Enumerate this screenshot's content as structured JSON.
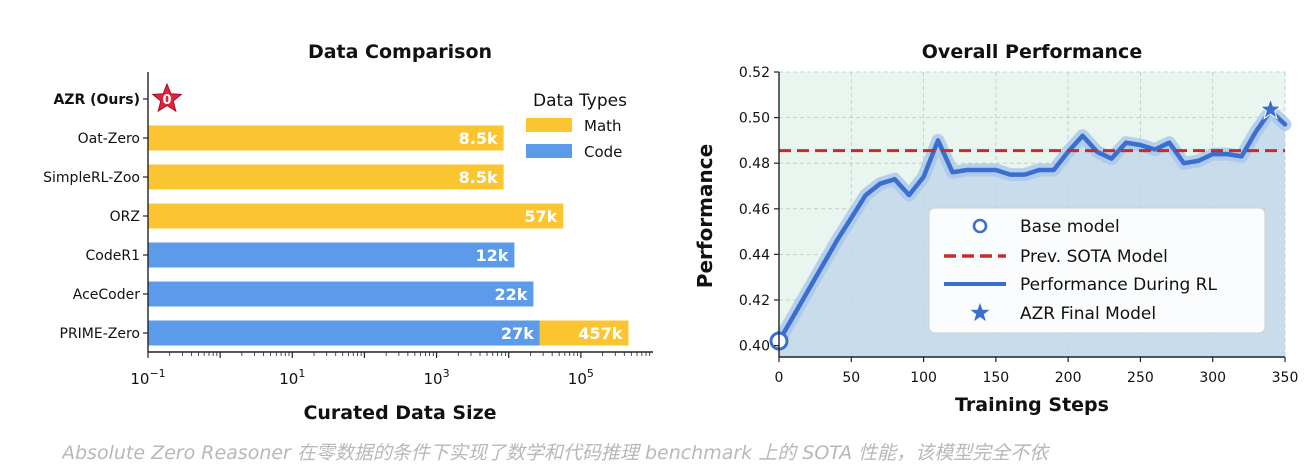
{
  "caption": "Absolute Zero Reasoner 在零数据的条件下实现了数学和代码推理 benchmark 上的 SOTA 性能，该模型完全不依",
  "colors": {
    "math": "#fbc531",
    "code": "#5b9bea",
    "sota": "#c92a2a",
    "rl": "#3a6fd0",
    "star": "#3a6fd0",
    "zero_star": "#e0243a"
  },
  "chart_data": [
    {
      "type": "bar",
      "orientation": "horizontal",
      "title": "Data Comparison",
      "xlabel": "Curated Data Size",
      "ylabel": "",
      "xscale": "log",
      "xlim": [
        0.1,
        1000000
      ],
      "xticks": [
        {
          "value": 0.1,
          "base": "10",
          "exp": "−1"
        },
        {
          "value": 10,
          "base": "10",
          "exp": "1"
        },
        {
          "value": 1000,
          "base": "10",
          "exp": "3"
        },
        {
          "value": 100000,
          "base": "10",
          "exp": "5"
        }
      ],
      "categories": [
        "AZR (Ours)",
        "Oat-Zero",
        "SimpleRL-Zoo",
        "ORZ",
        "CodeR1",
        "AceCoder",
        "PRIME-Zero"
      ],
      "highlight_category": "AZR (Ours)",
      "zero_marker_label": "0",
      "segments": [
        {
          "category": "Oat-Zero",
          "type": "Math",
          "from": 0.1,
          "to": 8500,
          "label": "8.5k"
        },
        {
          "category": "SimpleRL-Zoo",
          "type": "Math",
          "from": 0.1,
          "to": 8500,
          "label": "8.5k"
        },
        {
          "category": "ORZ",
          "type": "Math",
          "from": 0.1,
          "to": 57000,
          "label": "57k"
        },
        {
          "category": "CodeR1",
          "type": "Code",
          "from": 0.1,
          "to": 12000,
          "label": "12k"
        },
        {
          "category": "AceCoder",
          "type": "Code",
          "from": 0.1,
          "to": 22000,
          "label": "22k"
        },
        {
          "category": "PRIME-Zero",
          "type": "Code",
          "from": 0.1,
          "to": 27000,
          "label": "27k"
        },
        {
          "category": "PRIME-Zero",
          "type": "Math",
          "from": 27000,
          "to": 457000,
          "label": "457k"
        }
      ],
      "legend": {
        "title": "Data Types",
        "position": "top-right",
        "items": [
          {
            "label": "Math",
            "type": "Math"
          },
          {
            "label": "Code",
            "type": "Code"
          }
        ]
      }
    },
    {
      "type": "line",
      "title": "Overall Performance",
      "xlabel": "Training Steps",
      "ylabel": "Performance",
      "xlim": [
        0,
        350
      ],
      "ylim": [
        0.395,
        0.52
      ],
      "xticks": [
        0,
        50,
        100,
        150,
        200,
        250,
        300,
        350
      ],
      "yticks": [
        0.4,
        0.42,
        0.44,
        0.46,
        0.48,
        0.5,
        0.52
      ],
      "ytick_labels": [
        "0.40",
        "0.42",
        "0.44",
        "0.46",
        "0.48",
        "0.50",
        "0.52"
      ],
      "grid": true,
      "sota_value": 0.4855,
      "series": [
        {
          "name": "Performance During RL",
          "x": [
            0,
            10,
            20,
            30,
            40,
            50,
            60,
            70,
            80,
            90,
            100,
            110,
            120,
            130,
            140,
            150,
            160,
            170,
            180,
            190,
            200,
            210,
            220,
            230,
            240,
            250,
            260,
            270,
            280,
            290,
            300,
            310,
            320,
            330,
            340,
            350
          ],
          "y": [
            0.402,
            0.413,
            0.424,
            0.435,
            0.446,
            0.456,
            0.466,
            0.471,
            0.473,
            0.466,
            0.474,
            0.49,
            0.476,
            0.477,
            0.477,
            0.477,
            0.475,
            0.475,
            0.477,
            0.477,
            0.485,
            0.492,
            0.485,
            0.482,
            0.489,
            0.488,
            0.486,
            0.489,
            0.48,
            0.481,
            0.484,
            0.484,
            0.483,
            0.494,
            0.503,
            0.497
          ]
        }
      ],
      "base_point": {
        "x": 0,
        "y": 0.402
      },
      "final_point": {
        "x": 340,
        "y": 0.5035
      },
      "legend": {
        "position": "lower-right",
        "items": [
          "Base model",
          "Prev. SOTA Model",
          "Performance During RL",
          "AZR Final Model"
        ]
      }
    }
  ]
}
